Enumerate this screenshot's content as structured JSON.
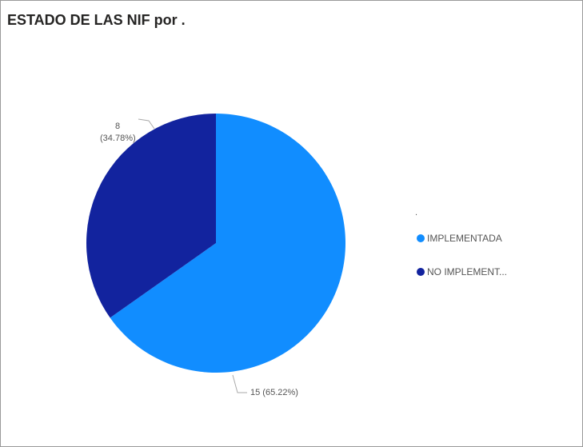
{
  "chart_data": {
    "type": "pie",
    "title": "ESTADO DE LAS NIF por .",
    "legend_title": ".",
    "categories": [
      "IMPLEMENTADA",
      "NO IMPLEMENT..."
    ],
    "values": [
      15,
      8
    ],
    "value_labels": [
      "15 (65.22%)",
      "8 (34.78%)"
    ],
    "colors": [
      "#118dff",
      "#12239e"
    ],
    "legend": "right"
  }
}
